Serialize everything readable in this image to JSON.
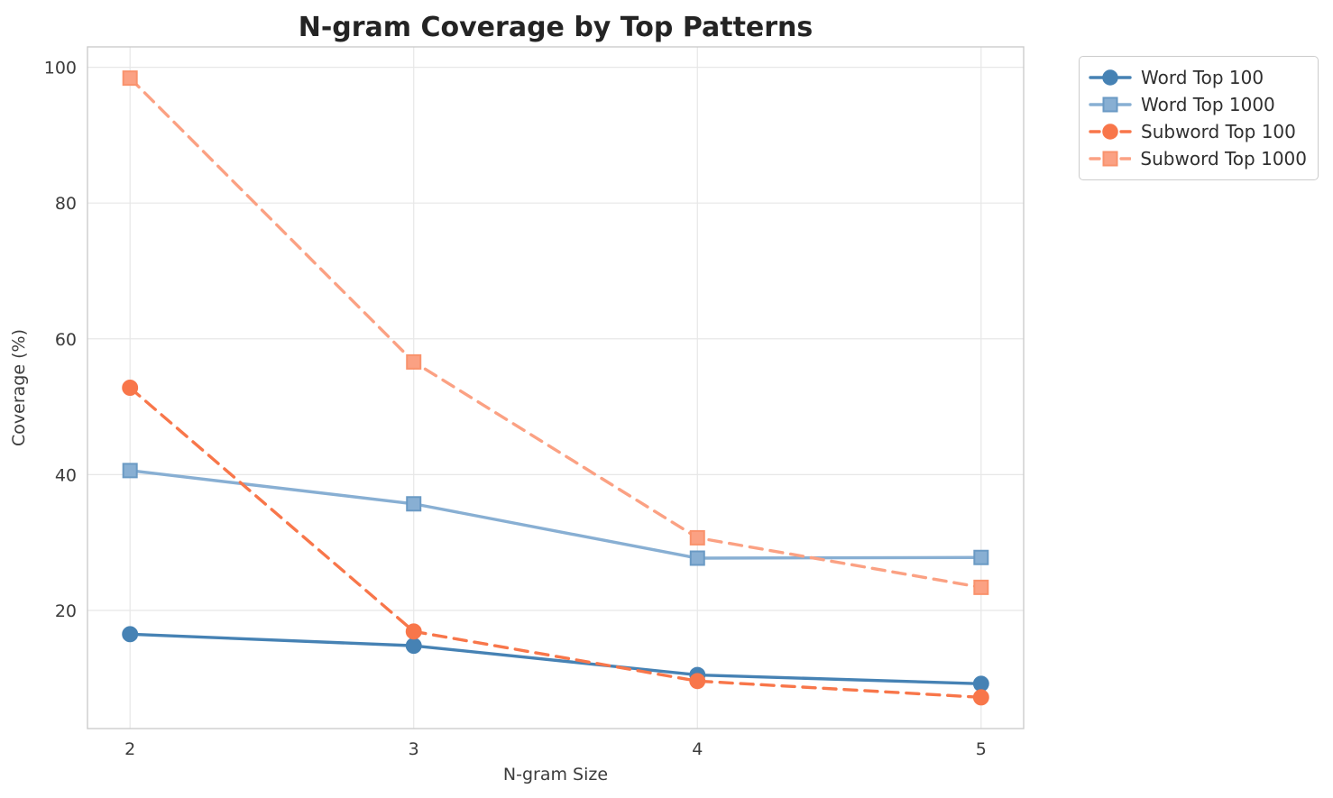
{
  "chart_data": {
    "type": "line",
    "title": "N-gram Coverage by Top Patterns",
    "xlabel": "N-gram Size",
    "ylabel": "Coverage (%)",
    "x": [
      2,
      3,
      4,
      5
    ],
    "xticks": [
      "2",
      "3",
      "4",
      "5"
    ],
    "yticks": [
      20,
      40,
      60,
      80,
      100
    ],
    "xlim": [
      1.85,
      5.15
    ],
    "ylim": [
      2.6,
      103.0
    ],
    "grid": true,
    "legend_position": "outside-top-right",
    "series": [
      {
        "name": "Word Top 100",
        "values": [
          16.5,
          14.8,
          10.5,
          9.2
        ],
        "color": "#4682B4",
        "marker_edge": "#4682B4",
        "line_style": "solid",
        "marker": "circle"
      },
      {
        "name": "Word Top 1000",
        "values": [
          40.6,
          35.7,
          27.7,
          27.8
        ],
        "color": "#88AFD3",
        "marker_edge": "#6A9AC4",
        "line_style": "solid",
        "marker": "square"
      },
      {
        "name": "Subword Top 100",
        "values": [
          52.8,
          16.9,
          9.6,
          7.2
        ],
        "color": "#F8764A",
        "marker_edge": "#F8764A",
        "line_style": "dashed",
        "marker": "circle"
      },
      {
        "name": "Subword Top 1000",
        "values": [
          98.4,
          56.6,
          30.7,
          23.4
        ],
        "color": "#FBA183",
        "marker_edge": "#F9926C",
        "line_style": "dashed",
        "marker": "square"
      }
    ],
    "colors": {
      "background": "#ffffff",
      "gridline": "#e7e7e7",
      "spine": "#cccccc",
      "title_text": "#242424",
      "tick_text": "#3c3c3c",
      "legend_border": "#cccccc"
    }
  }
}
